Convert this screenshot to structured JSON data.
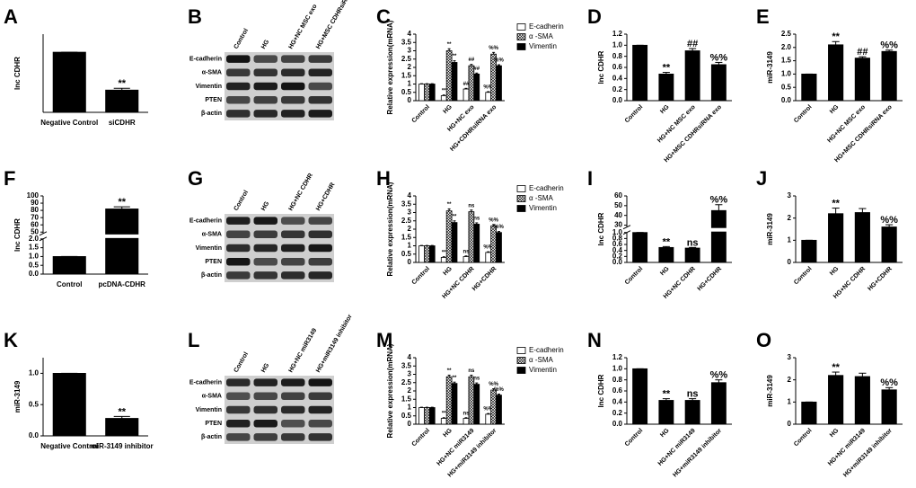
{
  "chart_data": [
    {
      "type": "bar",
      "panel": "A",
      "ylabel": "lnc CDHR",
      "categories": [
        "Negative Control",
        "siCDHR"
      ],
      "values": [
        1.0,
        0.37
      ],
      "errors": [
        0,
        0.03
      ],
      "annotations": [
        null,
        "**"
      ],
      "color": "#000000",
      "ylim": [
        0,
        1.3
      ]
    },
    {
      "type": "grouped_bar",
      "panel": "C",
      "ylabel": "Relative expression(mRNA)",
      "categories": [
        "Control",
        "HG",
        "HG+NC exo",
        "HG+CDHRsiRNA exo"
      ],
      "series": [
        {
          "name": "E-cadherin",
          "color": "#ffffff",
          "values": [
            1,
            0.3,
            0.7,
            0.5
          ],
          "errors": [
            0.02,
            0.04,
            0.04,
            0.04
          ],
          "annotations": [
            null,
            "**",
            "##",
            "%%"
          ]
        },
        {
          "name": "α -SMA",
          "color": "#ffffff",
          "hatch": "cross",
          "values": [
            1,
            3.0,
            2.1,
            2.8
          ],
          "errors": [
            0.02,
            0.12,
            0.08,
            0.1
          ],
          "annotations": [
            null,
            "**",
            "##",
            "%%"
          ]
        },
        {
          "name": "Vimentin",
          "color": "#000000",
          "values": [
            1,
            2.3,
            1.6,
            2.1
          ],
          "errors": [
            0.02,
            0.1,
            0.06,
            0.06
          ],
          "annotations": [
            null,
            "**",
            "##",
            "%%"
          ]
        }
      ],
      "legend": "right",
      "ylim": [
        0,
        4
      ],
      "yticks": [
        0,
        0.5,
        1,
        1.5,
        2,
        2.5,
        3,
        3.5,
        4
      ]
    },
    {
      "type": "bar",
      "panel": "D",
      "ylabel": "lnc CDHR",
      "categories": [
        "Control",
        "HG",
        "HG+NC MSC exo",
        "HG+MSC CDHRsiRNA exo"
      ],
      "values": [
        1.0,
        0.48,
        0.9,
        0.65
      ],
      "errors": [
        0,
        0.03,
        0.04,
        0.04
      ],
      "annotations": [
        null,
        "**",
        "##",
        "%%"
      ],
      "color": "#000000",
      "ylim": [
        0,
        1.2
      ],
      "yticks": [
        {
          "value": 0,
          "label": "0.0"
        },
        0.2,
        0.4,
        0.6,
        0.8,
        {
          "value": 1,
          "label": "1.0"
        },
        1.2
      ]
    },
    {
      "type": "bar",
      "panel": "E",
      "ylabel": "miR-3149",
      "categories": [
        "Control",
        "HG",
        "HG+NC MSC exo",
        "HG+MSC CDHRsiRNA exo"
      ],
      "values": [
        1.0,
        2.1,
        1.6,
        1.85
      ],
      "errors": [
        0,
        0.12,
        0.05,
        0.05
      ],
      "annotations": [
        null,
        "**",
        "##",
        "%%"
      ],
      "color": "#000000",
      "ylim": [
        0,
        2.5
      ],
      "yticks": [
        {
          "value": 0,
          "label": "0.0"
        },
        0.5,
        {
          "value": 1,
          "label": "1.0"
        },
        1.5,
        {
          "value": 2,
          "label": "2.0"
        },
        2.5
      ]
    },
    {
      "type": "bar",
      "panel": "F",
      "ylabel": "lnc CDHR",
      "categories": [
        "Control",
        "pcDNA-CDHR"
      ],
      "values": [
        1.0,
        82
      ],
      "errors": [
        0,
        3
      ],
      "annotations": [
        null,
        "**"
      ],
      "color": "#000000",
      "ylim": [
        0,
        100
      ],
      "ybreak": [
        2,
        48
      ],
      "yticks": [
        {
          "value": 0,
          "label": "0.0"
        },
        0.5,
        {
          "value": 1,
          "label": "1.0"
        },
        1.5,
        {
          "value": 2,
          "label": "2.0"
        },
        50,
        60,
        70,
        80,
        90,
        100
      ]
    },
    {
      "type": "grouped_bar",
      "panel": "H",
      "ylabel": "Relative expression(mRNA)",
      "categories": [
        "Control",
        "HG",
        "HG+NC CDHR",
        "HG+CDHR"
      ],
      "series": [
        {
          "name": "E-cadherin",
          "color": "#ffffff",
          "values": [
            1,
            0.3,
            0.35,
            0.6
          ],
          "errors": [
            0.02,
            0.04,
            0.04,
            0.04
          ],
          "annotations": [
            null,
            "**",
            "ns",
            "%%"
          ]
        },
        {
          "name": "α -SMA",
          "color": "#ffffff",
          "hatch": "cross",
          "values": [
            1,
            3.1,
            3.05,
            2.2
          ],
          "errors": [
            0.02,
            0.12,
            0.1,
            0.08
          ],
          "annotations": [
            null,
            "**",
            "ns",
            "%%"
          ]
        },
        {
          "name": "Vimentin",
          "color": "#000000",
          "values": [
            1,
            2.4,
            2.3,
            1.8
          ],
          "errors": [
            0.02,
            0.1,
            0.08,
            0.06
          ],
          "annotations": [
            null,
            "**",
            "ns",
            "%%"
          ]
        }
      ],
      "legend": "right",
      "ylim": [
        0,
        4
      ],
      "yticks": [
        0,
        0.5,
        1,
        1.5,
        2,
        2.5,
        3,
        3.5,
        4
      ]
    },
    {
      "type": "bar",
      "panel": "I",
      "ylabel": "lnc CDHR",
      "categories": [
        "Control",
        "HG",
        "HG+NC CDHR",
        "HG+CDHR"
      ],
      "values": [
        1.0,
        0.5,
        0.48,
        45
      ],
      "errors": [
        0,
        0.03,
        0.02,
        6
      ],
      "annotations": [
        null,
        "**",
        "ns",
        "%%"
      ],
      "color": "#000000",
      "ylim": [
        0,
        60
      ],
      "ybreak": [
        1,
        28
      ],
      "yticks": [
        {
          "value": 0,
          "label": "0.0"
        },
        0.2,
        0.4,
        0.6,
        0.8,
        {
          "value": 1,
          "label": "1.0"
        },
        30,
        40,
        50,
        60
      ]
    },
    {
      "type": "bar",
      "panel": "J",
      "ylabel": "miR-3149",
      "categories": [
        "Control",
        "HG",
        "HG+NC CDHR",
        "HG+CDHR"
      ],
      "values": [
        1.0,
        2.2,
        2.25,
        1.6
      ],
      "errors": [
        0,
        0.25,
        0.18,
        0.1
      ],
      "annotations": [
        null,
        "**",
        null,
        "%%"
      ],
      "color": "#000000",
      "ylim": [
        0,
        3
      ],
      "yticks": [
        0,
        1,
        2,
        3
      ]
    },
    {
      "type": "bar",
      "panel": "K",
      "ylabel": "miR-3149",
      "categories": [
        "Negative Control",
        "miR-3149 inhibitor"
      ],
      "values": [
        1.0,
        0.28
      ],
      "errors": [
        0,
        0.03
      ],
      "annotations": [
        null,
        "**"
      ],
      "color": "#000000",
      "ylim": [
        0,
        1.25
      ],
      "yticks": [
        {
          "value": 0,
          "label": "0.0"
        },
        0.5,
        {
          "value": 1,
          "label": "1.0"
        }
      ]
    },
    {
      "type": "grouped_bar",
      "panel": "M",
      "ylabel": "Relative expression(mRNA)",
      "categories": [
        "Control",
        "HG",
        "HG+NC miR3149",
        "HG+miR3149 inhibitor"
      ],
      "series": [
        {
          "name": "E-cadherin",
          "color": "#ffffff",
          "values": [
            1,
            0.35,
            0.35,
            0.6
          ],
          "errors": [
            0.02,
            0.04,
            0.04,
            0.04
          ],
          "annotations": [
            null,
            "**",
            "ns",
            "%%"
          ]
        },
        {
          "name": "α -SMA",
          "color": "#ffffff",
          "hatch": "cross",
          "values": [
            1,
            2.85,
            2.85,
            2.05
          ],
          "errors": [
            0.02,
            0.1,
            0.1,
            0.08
          ],
          "annotations": [
            null,
            "**",
            "ns",
            "%%"
          ]
        },
        {
          "name": "Vimentin",
          "color": "#000000",
          "values": [
            1,
            2.45,
            2.4,
            1.75
          ],
          "errors": [
            0.02,
            0.08,
            0.08,
            0.06
          ],
          "annotations": [
            null,
            "**",
            "ns",
            "%%"
          ]
        }
      ],
      "legend": "right",
      "ylim": [
        0,
        4
      ],
      "yticks": [
        0,
        0.5,
        1,
        1.5,
        2,
        2.5,
        3,
        3.5,
        4
      ]
    },
    {
      "type": "bar",
      "panel": "N",
      "ylabel": "lnc CDHR",
      "categories": [
        "Control",
        "HG",
        "HG+NC miR3149",
        "HG+miR3149 inhibitor"
      ],
      "values": [
        1.0,
        0.43,
        0.43,
        0.75
      ],
      "errors": [
        0,
        0.03,
        0.03,
        0.05
      ],
      "annotations": [
        null,
        "**",
        "ns",
        "%%"
      ],
      "color": "#000000",
      "ylim": [
        0,
        1.2
      ],
      "yticks": [
        {
          "value": 0,
          "label": "0.0"
        },
        0.2,
        0.4,
        0.6,
        0.8,
        {
          "value": 1,
          "label": "1.0"
        },
        1.2
      ]
    },
    {
      "type": "bar",
      "panel": "O",
      "ylabel": "miR-3149",
      "categories": [
        "Control",
        "HG",
        "HG+NC miR3149",
        "HG+miR3149 inhibitor"
      ],
      "values": [
        1.0,
        2.2,
        2.15,
        1.55
      ],
      "errors": [
        0,
        0.15,
        0.15,
        0.1
      ],
      "annotations": [
        null,
        "**",
        null,
        "%%"
      ],
      "color": "#000000",
      "ylim": [
        0,
        3
      ],
      "yticks": [
        0,
        1,
        2,
        3
      ]
    }
  ],
  "blots": [
    {
      "panel": "B",
      "lanes": [
        "Control",
        "HG",
        "HG+NC MSC exo",
        "HG+MSC CDHRsiRNA exo"
      ],
      "proteins": [
        "E-cadherin",
        "α-SMA",
        "Vimentin",
        "PTEN",
        "β-actin"
      ]
    },
    {
      "panel": "G",
      "lanes": [
        "Control",
        "HG",
        "HG+NC CDHR",
        "HG+CDHR"
      ],
      "proteins": [
        "E-cadherin",
        "α-SMA",
        "Vimentin",
        "PTEN",
        "β-actin"
      ]
    },
    {
      "panel": "L",
      "lanes": [
        "Control",
        "HG",
        "HG+NC miR3149",
        "HG+miR3149 inhibitor"
      ],
      "proteins": [
        "E-cadherin",
        "α-SMA",
        "Vimentin",
        "PTEN",
        "β-actin"
      ]
    }
  ]
}
